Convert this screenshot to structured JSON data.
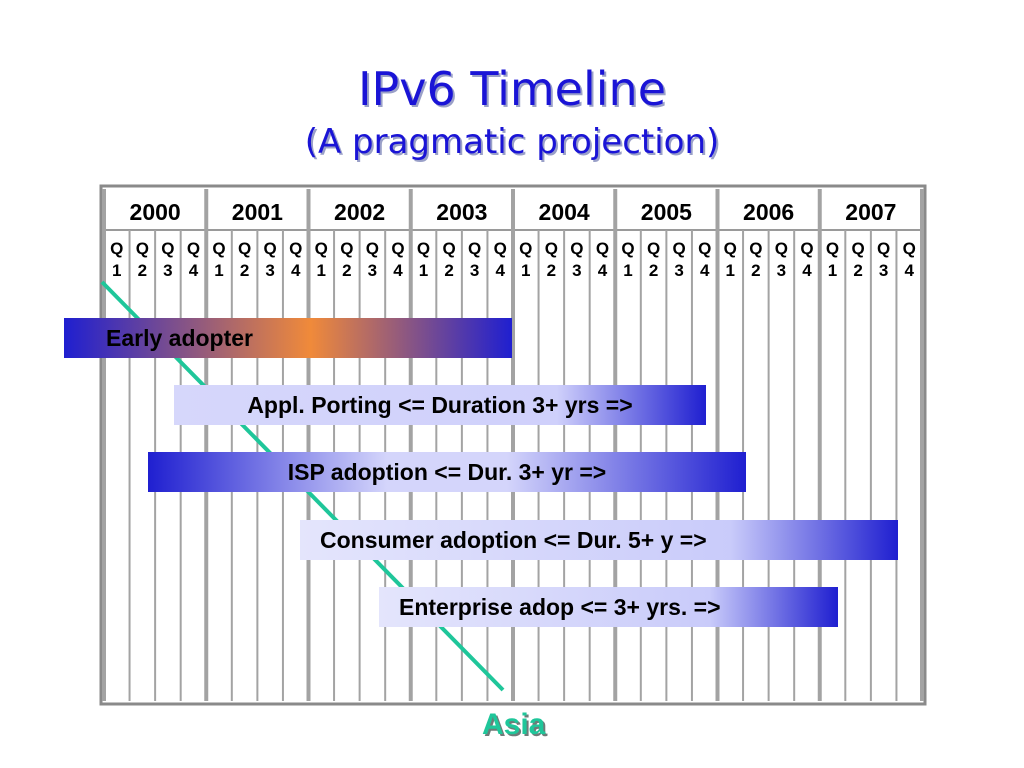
{
  "title": "IPv6 Timeline",
  "subtitle": "(A pragmatic projection)",
  "years": [
    "2000",
    "2001",
    "2002",
    "2003",
    "2004",
    "2005",
    "2006",
    "2007"
  ],
  "quarter_letter": "Q",
  "quarters": [
    "1",
    "2",
    "3",
    "4"
  ],
  "bars": [
    {
      "label": "Early adopter",
      "start_quarter": 0,
      "end_quarter": 16,
      "style": "early"
    },
    {
      "label": "Appl. Porting <= Duration 3+ yrs  =>",
      "start_quarter": 3,
      "end_quarter": 24,
      "style": "light"
    },
    {
      "label": "ISP adoption <=  Dur. 3+ yr  =>",
      "start_quarter": 2,
      "end_quarter": 25,
      "style": "isp"
    },
    {
      "label": "Consumer adoption <= Dur. 5+ y   =>",
      "start_quarter": 8,
      "end_quarter": 32,
      "style": "consumer"
    },
    {
      "label": "Enterprise adop  <= 3+ yrs. =>",
      "start_quarter": 11,
      "end_quarter": 29,
      "style": "enterprise"
    }
  ],
  "asia_label": "Asia",
  "colors": {
    "title": "#1a14d6",
    "bar_blue": "#1f1fd0",
    "bar_light": "#cfd0fb",
    "bar_orange": "#f08a3a",
    "asia_line": "#1fc69a"
  }
}
